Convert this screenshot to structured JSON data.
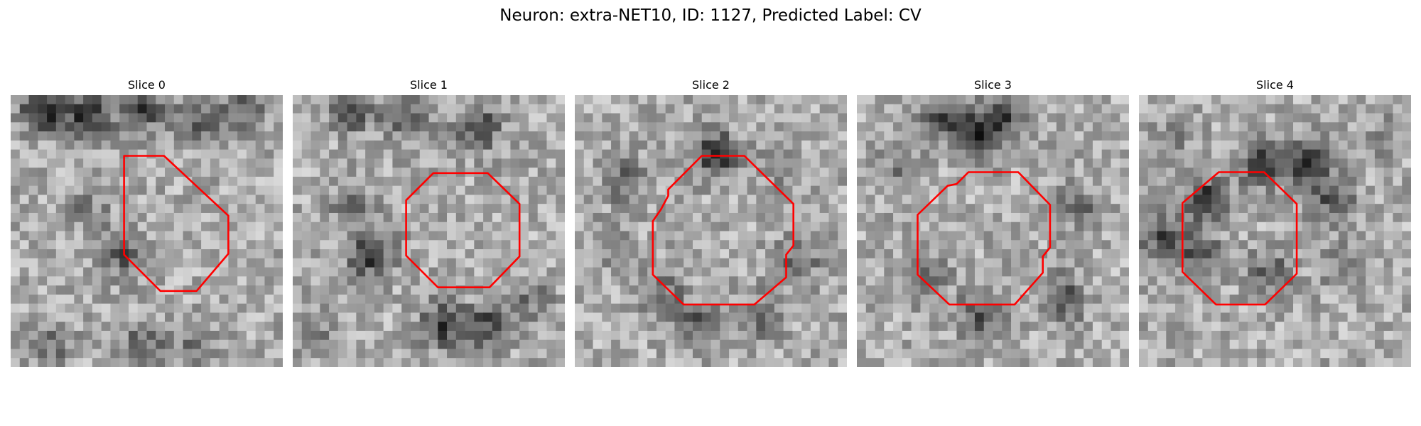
{
  "figure": {
    "title": "Neuron: extra-NET10, ID: 1127, Predicted Label: CV",
    "colormap": "grayscale",
    "contour_color": "#ff0000"
  },
  "slices": [
    {
      "title": "Slice 0"
    },
    {
      "title": "Slice 1"
    },
    {
      "title": "Slice 2"
    },
    {
      "title": "Slice 3"
    },
    {
      "title": "Slice 4"
    }
  ]
}
